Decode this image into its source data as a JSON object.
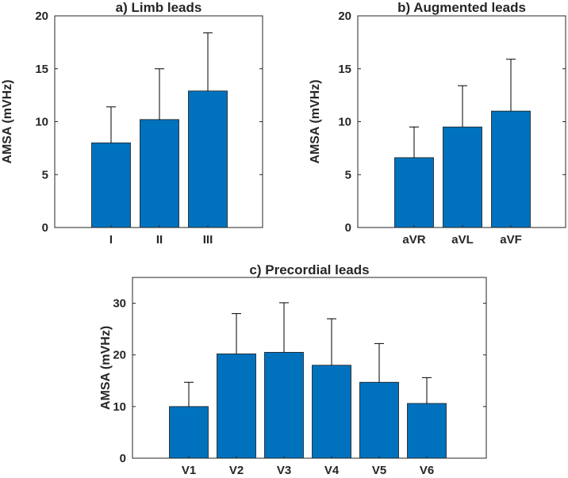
{
  "bar_color": "#0072BD",
  "error_color": "#000000",
  "chart_data": [
    {
      "type": "bar",
      "title": "a) Limb leads",
      "xlabel": "",
      "ylabel": "AMSA (mVHz)",
      "categories": [
        "I",
        "II",
        "III"
      ],
      "values": [
        8.0,
        10.2,
        12.9
      ],
      "errors": [
        3.4,
        4.8,
        5.5
      ],
      "ylim": [
        0,
        20
      ],
      "yticks": [
        "0",
        "5",
        "10",
        "15",
        "20"
      ]
    },
    {
      "type": "bar",
      "title": "b) Augmented leads",
      "xlabel": "",
      "ylabel": "AMSA (mVHz)",
      "categories": [
        "aVR",
        "aVL",
        "aVF"
      ],
      "values": [
        6.6,
        9.5,
        11.0
      ],
      "errors": [
        2.9,
        3.9,
        4.9
      ],
      "ylim": [
        0,
        20
      ],
      "yticks": [
        "0",
        "5",
        "10",
        "15",
        "20"
      ]
    },
    {
      "type": "bar",
      "title": "c) Precordial leads",
      "xlabel": "",
      "ylabel": "AMSA (mVHz)",
      "categories": [
        "V1",
        "V2",
        "V3",
        "V4",
        "V5",
        "V6"
      ],
      "values": [
        10.0,
        20.2,
        20.5,
        18.0,
        14.7,
        10.6
      ],
      "errors": [
        4.7,
        7.8,
        9.6,
        9.0,
        7.5,
        5.0
      ],
      "ylim": [
        0,
        35
      ],
      "yticks": [
        "0",
        "10",
        "20",
        "30"
      ]
    }
  ]
}
